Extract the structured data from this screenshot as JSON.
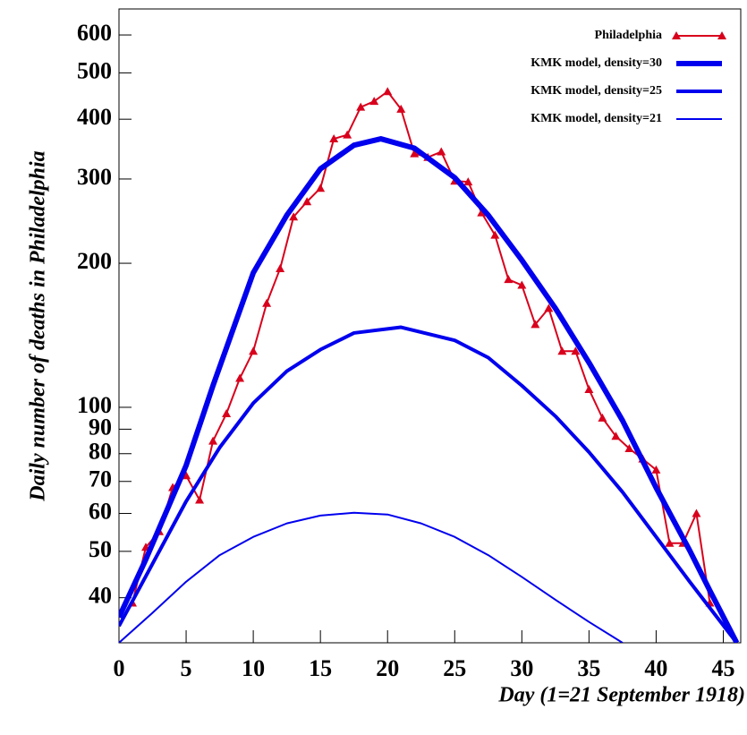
{
  "chart_data": {
    "type": "line",
    "xlabel": "Day (1=21 September 1918)",
    "ylabel": "Daily number of deaths in Philadelphia",
    "xlim": [
      0,
      46.3
    ],
    "xticks": [
      0,
      5,
      10,
      15,
      20,
      25,
      30,
      35,
      40,
      45
    ],
    "ylim": [
      32.2,
      680
    ],
    "yticks": [
      40,
      50,
      60,
      70,
      80,
      90,
      100,
      200,
      300,
      400,
      500,
      600
    ],
    "yscale": "log",
    "legend": "upper right",
    "series": [
      {
        "name": "Philadelphia",
        "color": "#d8001c",
        "marker": "triangle",
        "width": 2,
        "x": [
          1,
          2,
          3,
          4,
          5,
          6,
          7,
          8,
          9,
          10,
          11,
          12,
          13,
          14,
          15,
          16,
          17,
          18,
          19,
          20,
          21,
          22,
          23,
          24,
          25,
          26,
          27,
          28,
          29,
          30,
          31,
          32,
          33,
          34,
          35,
          36,
          37,
          38,
          39,
          40,
          41,
          42,
          43,
          44
        ],
        "values": [
          39,
          51,
          55,
          68,
          72,
          64,
          85,
          97,
          115,
          131,
          165,
          195,
          250,
          269,
          287,
          364,
          371,
          424,
          436,
          457,
          420,
          339,
          333,
          342,
          297,
          296,
          255,
          229,
          185,
          180,
          149,
          161,
          131,
          131,
          109,
          95,
          87,
          82,
          78,
          74,
          52,
          52,
          60,
          39
        ]
      },
      {
        "name": "KMK model, density=30",
        "color": "#0000ee",
        "width": 6,
        "x": [
          0,
          2,
          5,
          7,
          10,
          12.5,
          15,
          17.5,
          19.5,
          22,
          25,
          27.5,
          30,
          32.5,
          35,
          37.5,
          40,
          42.5,
          44,
          46
        ],
        "values": [
          36.4,
          48.1,
          75.6,
          111,
          191,
          252,
          315,
          353,
          364,
          348,
          302,
          252,
          203,
          161,
          124,
          93.8,
          67.9,
          50.2,
          41.4,
          32.2
        ]
      },
      {
        "name": "KMK model, density=25",
        "color": "#0000ee",
        "width": 4,
        "x": [
          0,
          2.5,
          5,
          7.5,
          10,
          12.5,
          15,
          17.5,
          21,
          25,
          27.5,
          30,
          32.5,
          35,
          37.5,
          40,
          42.5,
          46
        ],
        "values": [
          34.9,
          47.1,
          63.6,
          82.4,
          102,
          119,
          132,
          143,
          147,
          138,
          127,
          111,
          95.8,
          80.6,
          66.5,
          53.6,
          43.2,
          32.2
        ]
      },
      {
        "name": "KMK model, density=21",
        "color": "#0000ee",
        "width": 2,
        "x": [
          0,
          2.5,
          5,
          7.5,
          10,
          12.5,
          15,
          17.5,
          20,
          22.5,
          25,
          27.5,
          30,
          32.5,
          35,
          37.5
        ],
        "values": [
          32.2,
          37.2,
          43.2,
          49.1,
          53.6,
          57.2,
          59.4,
          60.2,
          59.7,
          57.2,
          53.6,
          49.1,
          44.2,
          39.6,
          35.6,
          32.2
        ]
      }
    ]
  }
}
